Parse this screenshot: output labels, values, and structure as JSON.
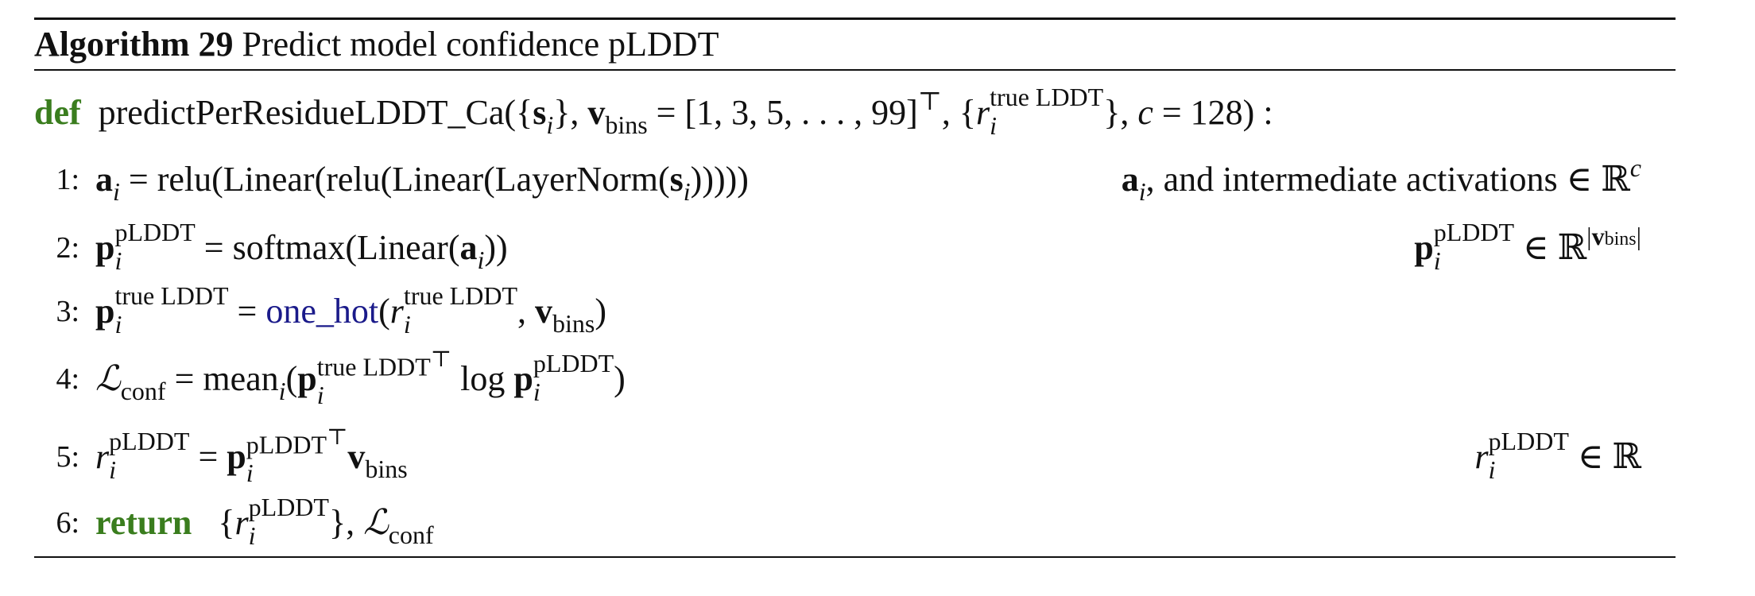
{
  "algorithm": {
    "label": "Algorithm 29",
    "title": "Predict model confidence pLDDT"
  },
  "signature": {
    "keyword": "def",
    "function_name": "predictPerResidueLDDT_Ca",
    "params_text": "({si}, vbins = [1, 3, 5, . . . , 99]ᵀ, {ri true LDDT}, c = 128) :"
  },
  "steps": [
    {
      "num": "1:",
      "text": "ai = relu(Linear(relu(Linear(LayerNorm(si)))))",
      "comment": "ai, and intermediate activations ∈ ℝc"
    },
    {
      "num": "2:",
      "text": "pi pLDDT = softmax(Linear(ai))",
      "comment": "pi pLDDT ∈ ℝ|vbins|"
    },
    {
      "num": "3:",
      "text": "pi true LDDT = one_hot(ri true LDDT, vbins)",
      "comment": ""
    },
    {
      "num": "4:",
      "text": "ℒconf = meani(pi true LDDTᵀ log pi pLDDT)",
      "comment": ""
    },
    {
      "num": "5:",
      "text": "ri pLDDT = pi pLDDTᵀ vbins",
      "comment": "ri pLDDT ∈ ℝ"
    },
    {
      "num": "6:",
      "keyword": "return",
      "text": "{ri pLDDT}, ℒconf",
      "comment": ""
    }
  ],
  "colors": {
    "keyword": "#3a7d1e",
    "function_call": "#1a1a8a"
  }
}
